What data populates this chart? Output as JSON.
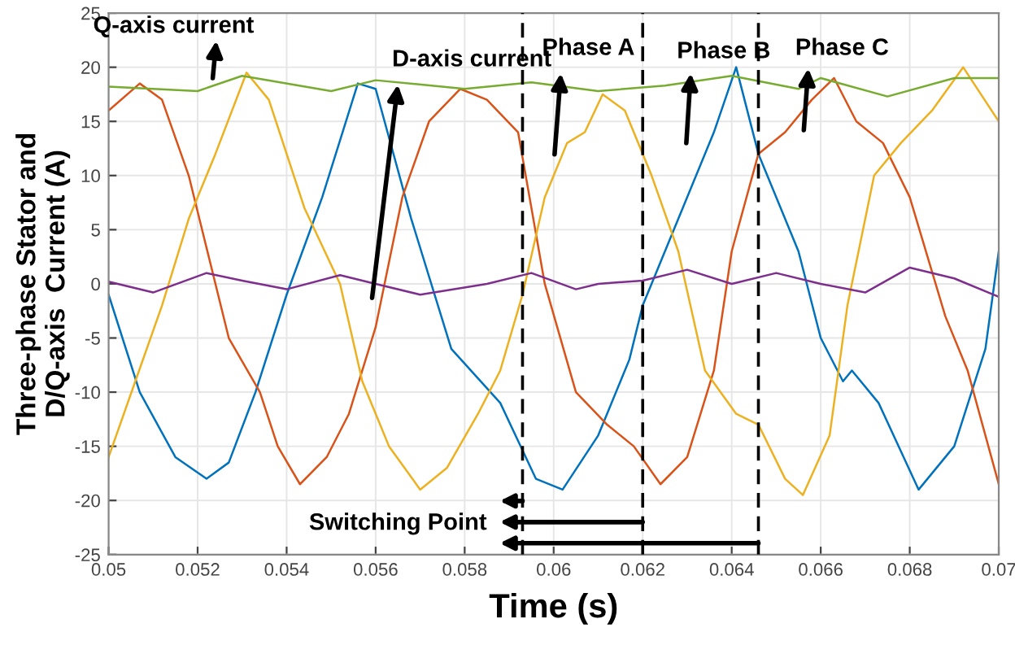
{
  "chart_data": {
    "type": "line",
    "xlabel": "Time (s)",
    "ylabel": "Three-phase Stator and\nD/Q-axis  Current (A)",
    "xlim": [
      0.05,
      0.07
    ],
    "ylim": [
      -25,
      25
    ],
    "xticks": [
      0.05,
      0.052,
      0.054,
      0.056,
      0.058,
      0.06,
      0.062,
      0.064,
      0.066,
      0.068,
      0.07
    ],
    "yticks": [
      -25,
      -20,
      -15,
      -10,
      -5,
      0,
      5,
      10,
      15,
      20,
      25
    ],
    "grid": true,
    "marker": "none",
    "line_style": "solid",
    "series": [
      {
        "color": "#0072bd",
        "x": [
          0.05,
          0.0507,
          0.0515,
          0.0522,
          0.0527,
          0.0533,
          0.054,
          0.0548,
          0.0556,
          0.056,
          0.0568,
          0.0577,
          0.0588,
          0.0596,
          0.0602,
          0.061,
          0.0617,
          0.062,
          0.0628,
          0.0636,
          0.0641,
          0.0646,
          0.0655,
          0.066,
          0.0665,
          0.0667,
          0.0673,
          0.0682,
          0.069,
          0.0697,
          0.07
        ],
        "values": [
          -1,
          -10,
          -16,
          -18,
          -16.5,
          -10,
          -1,
          8,
          18.5,
          18,
          6,
          -6,
          -11,
          -18,
          -19,
          -14,
          -7,
          -2,
          6,
          14,
          20,
          12,
          3,
          -5,
          -9,
          -8,
          -11,
          -19,
          -15,
          -6,
          3
        ]
      },
      {
        "color": "#d95319",
        "x": [
          0.05,
          0.0507,
          0.0512,
          0.0518,
          0.0527,
          0.0534,
          0.0538,
          0.0543,
          0.0549,
          0.0554,
          0.056,
          0.0566,
          0.0572,
          0.0579,
          0.0585,
          0.0592,
          0.0598,
          0.0605,
          0.0612,
          0.0618,
          0.0624,
          0.063,
          0.0636,
          0.064,
          0.0646,
          0.0652,
          0.0658,
          0.0663,
          0.0668,
          0.0674,
          0.068,
          0.0688,
          0.0693,
          0.07
        ],
        "values": [
          16,
          18.5,
          17,
          10,
          -5,
          -10,
          -15,
          -18.5,
          -16,
          -12,
          -4,
          8,
          15,
          18,
          17,
          14,
          0,
          -10,
          -13,
          -15,
          -18.5,
          -16,
          -8,
          3,
          12,
          14,
          17,
          19,
          15,
          13,
          8,
          -3,
          -8,
          -18.5
        ]
      },
      {
        "color": "#edb120",
        "x": [
          0.05,
          0.0506,
          0.0512,
          0.0518,
          0.0524,
          0.0531,
          0.0536,
          0.0544,
          0.0552,
          0.0557,
          0.0563,
          0.057,
          0.0576,
          0.0583,
          0.0588,
          0.0593,
          0.0598,
          0.0603,
          0.0607,
          0.0611,
          0.0616,
          0.0622,
          0.0628,
          0.0634,
          0.0641,
          0.0646,
          0.0652,
          0.0656,
          0.0662,
          0.0666,
          0.0672,
          0.0678,
          0.0685,
          0.0692,
          0.07
        ],
        "values": [
          -16,
          -9,
          -2,
          6,
          12,
          19.5,
          17,
          7,
          0,
          -9,
          -15,
          -19,
          -17,
          -12,
          -8,
          -1,
          8,
          13,
          14,
          17.5,
          16,
          10,
          3,
          -8,
          -12,
          -13,
          -18,
          -19.5,
          -14,
          -2,
          10,
          13,
          16,
          20,
          15
        ]
      },
      {
        "color": "#7e2f8e",
        "x": [
          0.05,
          0.051,
          0.0522,
          0.053,
          0.054,
          0.0552,
          0.056,
          0.057,
          0.0585,
          0.0595,
          0.0605,
          0.061,
          0.062,
          0.063,
          0.064,
          0.065,
          0.066,
          0.067,
          0.068,
          0.069,
          0.07
        ],
        "values": [
          0.2,
          -0.8,
          1,
          0.3,
          -0.5,
          0.8,
          0,
          -1,
          0,
          1,
          -0.5,
          0,
          0.3,
          1.3,
          0,
          1,
          0,
          -0.8,
          1.5,
          0.5,
          -1.2
        ]
      },
      {
        "color": "#77ac30",
        "x": [
          0.05,
          0.052,
          0.053,
          0.055,
          0.056,
          0.058,
          0.0595,
          0.061,
          0.0625,
          0.064,
          0.0655,
          0.066,
          0.0675,
          0.069,
          0.07
        ],
        "values": [
          18.2,
          17.8,
          19.2,
          17.8,
          18.8,
          18,
          18.6,
          17.8,
          18.3,
          19.2,
          18,
          19,
          17.3,
          19,
          19
        ]
      }
    ],
    "ref_lines": [
      {
        "axis": "x",
        "value": 0.0593,
        "color": "#000000",
        "line_style": "dashed"
      },
      {
        "axis": "x",
        "value": 0.062,
        "color": "#000000",
        "line_style": "dashed"
      },
      {
        "axis": "x",
        "value": 0.0646,
        "color": "#000000",
        "line_style": "dashed"
      }
    ],
    "annotations": [
      "Q-axis current",
      "D-axis current",
      "Phase A",
      "Phase B",
      "Phase C",
      "Switching Point"
    ]
  }
}
